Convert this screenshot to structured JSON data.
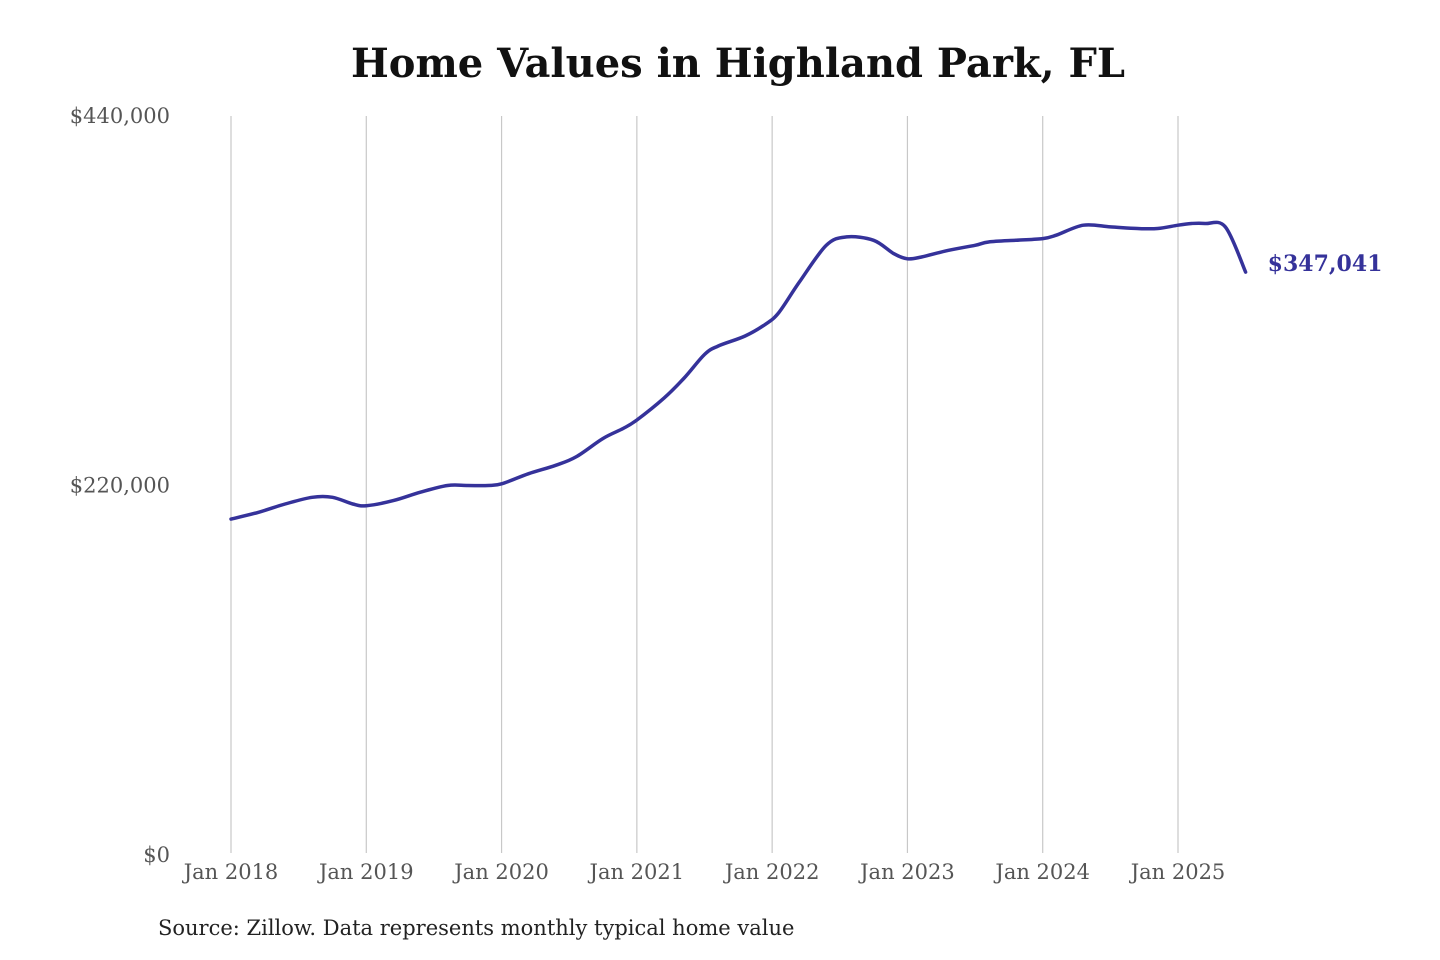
{
  "chart_data": {
    "type": "line",
    "title": "Home Values in Highland Park, FL",
    "source": "Source: Zillow. Data represents monthly typical home value",
    "ylim": [
      0,
      440000
    ],
    "y_ticks": [
      {
        "value": 0,
        "label": "$0"
      },
      {
        "value": 220000,
        "label": "$220,000"
      },
      {
        "value": 440000,
        "label": "$440,000"
      }
    ],
    "x_ticks": [
      {
        "value": 2018.0,
        "label": "Jan 2018"
      },
      {
        "value": 2019.0,
        "label": "Jan 2019"
      },
      {
        "value": 2020.0,
        "label": "Jan 2020"
      },
      {
        "value": 2021.0,
        "label": "Jan 2021"
      },
      {
        "value": 2022.0,
        "label": "Jan 2022"
      },
      {
        "value": 2023.0,
        "label": "Jan 2023"
      },
      {
        "value": 2024.0,
        "label": "Jan 2024"
      },
      {
        "value": 2025.0,
        "label": "Jan 2025"
      }
    ],
    "xlim": [
      2018.0,
      2025.5
    ],
    "grid": "vertical",
    "line_color": "#35329a",
    "end_label": "$347,041",
    "series": [
      {
        "x": [
          2018.0,
          2018.2,
          2018.4,
          2018.6,
          2018.75,
          2018.9,
          2019.0,
          2019.2,
          2019.4,
          2019.6,
          2019.75,
          2019.9,
          2020.0,
          2020.2,
          2020.4,
          2020.55,
          2020.75,
          2020.9,
          2021.0,
          2021.2,
          2021.35,
          2021.5,
          2021.6,
          2021.8,
          2021.95,
          2022.05,
          2022.2,
          2022.4,
          2022.55,
          2022.75,
          2022.9,
          2023.0,
          2023.1,
          2023.3,
          2023.5,
          2023.6,
          2023.8,
          2024.0,
          2024.1,
          2024.3,
          2024.5,
          2024.7,
          2024.85,
          2025.0,
          2025.1,
          2025.2,
          2025.35,
          2025.5
        ],
        "y": [
          200000,
          204000,
          209000,
          213000,
          213000,
          209000,
          208000,
          211000,
          216000,
          220000,
          220000,
          220000,
          221000,
          227000,
          232000,
          237000,
          248000,
          254000,
          259000,
          272000,
          284000,
          298000,
          303000,
          309000,
          316000,
          323000,
          341000,
          363000,
          368000,
          366000,
          358000,
          355000,
          356000,
          360000,
          363000,
          365000,
          366000,
          367000,
          369000,
          375000,
          374000,
          373000,
          373000,
          375000,
          376000,
          376000,
          374000,
          347041
        ]
      }
    ]
  }
}
